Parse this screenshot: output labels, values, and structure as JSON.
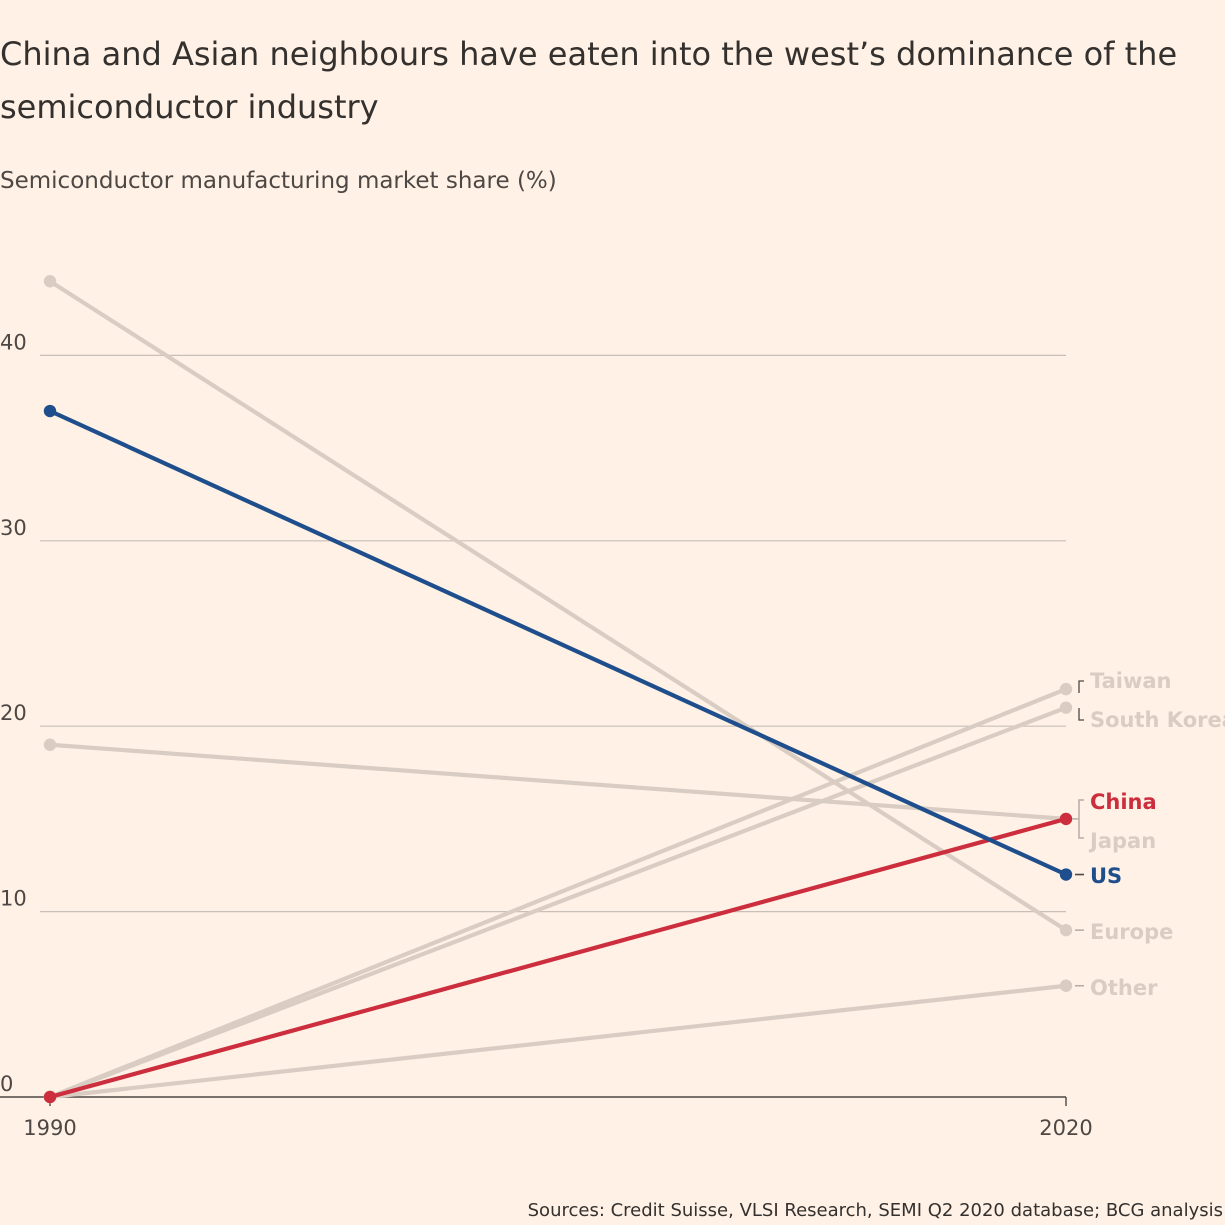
{
  "title": "China and Asian neighbours have eaten into the west’s dominance of the semiconductor industry",
  "subtitle": "Semiconductor manufacturing market share (%)",
  "source": "Sources: Credit Suisse, VLSI Research, SEMI Q2 2020 database; BCG analysis",
  "colors": {
    "background": "#FFF1E5",
    "muted": "#D9CCC3",
    "highlight_us": "#1E4E8C",
    "highlight_china": "#CC2E3E",
    "grid": "#C7BFB8",
    "axis": "#4D4845"
  },
  "chart_data": {
    "type": "line",
    "title": "China and Asian neighbours have eaten into the west’s dominance of the semiconductor industry",
    "ylabel": "Semiconductor manufacturing market share (%)",
    "x": [
      "1990",
      "2020"
    ],
    "ylim": [
      0,
      45
    ],
    "yticks": [
      0,
      10,
      20,
      30,
      40
    ],
    "grid": true,
    "series": [
      {
        "name": "Taiwan",
        "values": [
          0,
          22
        ],
        "color": "#D9CCC3",
        "highlight": false
      },
      {
        "name": "South Korea",
        "values": [
          0,
          21
        ],
        "color": "#D9CCC3",
        "highlight": false
      },
      {
        "name": "Japan",
        "values": [
          19,
          15
        ],
        "color": "#D9CCC3",
        "highlight": false
      },
      {
        "name": "Europe",
        "values": [
          44,
          9
        ],
        "color": "#D9CCC3",
        "highlight": false
      },
      {
        "name": "Other",
        "values": [
          0,
          6
        ],
        "color": "#D9CCC3",
        "highlight": false
      },
      {
        "name": "China",
        "values": [
          0,
          15
        ],
        "color": "#CC2E3E",
        "highlight": true
      },
      {
        "name": "US",
        "values": [
          37,
          12
        ],
        "color": "#1E4E8C",
        "highlight": true
      }
    ]
  }
}
